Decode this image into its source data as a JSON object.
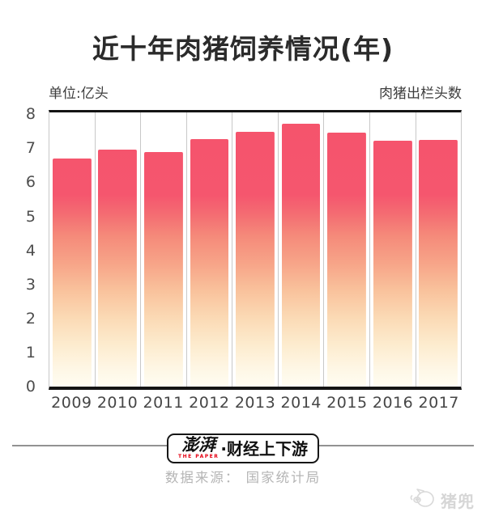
{
  "title": "近十年肉猪饲养情况(年)",
  "unit_label": "单位:亿头",
  "series_label": "肉猪出栏头数",
  "chart_data": {
    "type": "bar",
    "title": "近十年肉猪饲养情况(年)",
    "categories": [
      "2009",
      "2010",
      "2011",
      "2012",
      "2013",
      "2014",
      "2015",
      "2016",
      "2017"
    ],
    "values": [
      6.7,
      6.96,
      6.9,
      7.28,
      7.49,
      7.71,
      7.46,
      7.22,
      7.24
    ],
    "xlabel": "",
    "ylabel": "单位:亿头",
    "ylim": [
      0,
      8
    ],
    "y_ticks": [
      0,
      1,
      2,
      3,
      4,
      5,
      6,
      7,
      8
    ],
    "grid": "vertical column separators only, no horizontal gridlines",
    "legend": "none",
    "bar_gradient_top_to_bottom": [
      "#f5536c",
      "#f58a7a",
      "#f9c29c",
      "#fbdab5",
      "#fffdf2"
    ],
    "axis_line_color": "#141414",
    "gridline_color": "#c8c8c8"
  },
  "footer": {
    "logo_cn": "澎湃",
    "logo_en": "THE PAPER",
    "logo_suffix": "·财经上下游",
    "source": "数据来源： 国家统计局"
  },
  "watermark": {
    "text": "猪兜",
    "icon": "pig-doodle-icon"
  },
  "colors": {
    "title": "#2b2b2b",
    "bar_red": "#f5536c",
    "footer_rule": "#929292",
    "source_text": "#b5b5b5",
    "watermark": "#d6d6d6",
    "logo_red": "#e60012"
  }
}
